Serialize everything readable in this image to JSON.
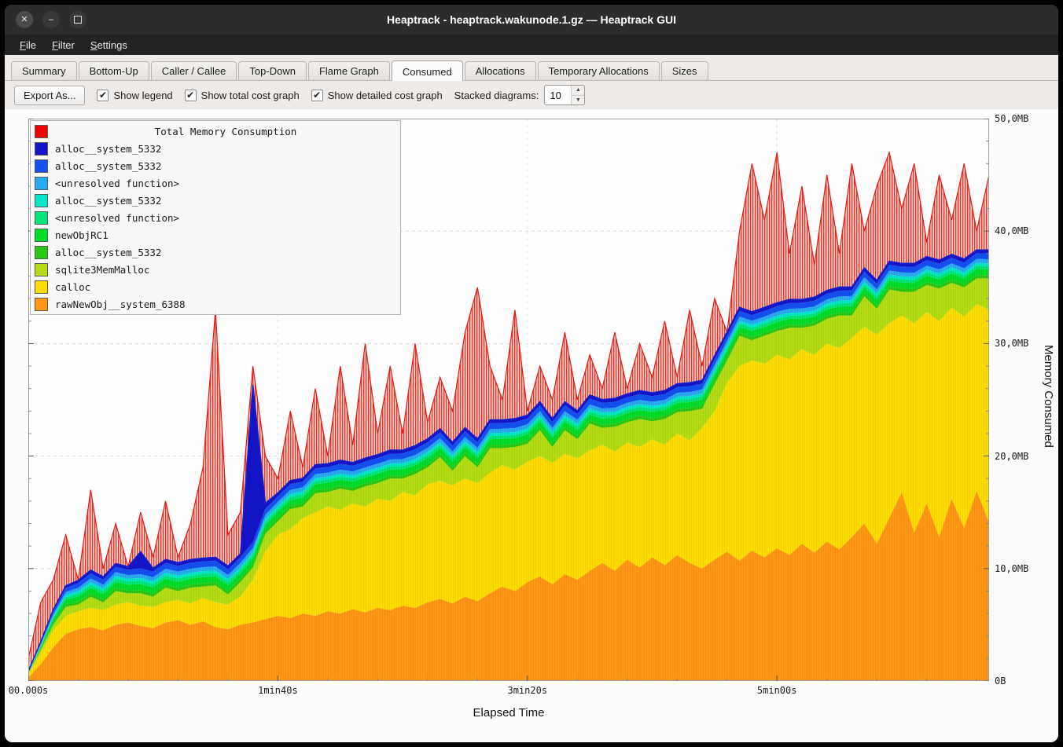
{
  "window": {
    "title": "Heaptrack - heaptrack.wakunode.1.gz — Heaptrack GUI"
  },
  "icons": {
    "check": "✔",
    "close": "✕",
    "minimize": "–",
    "spin_up": "▲",
    "spin_down": "▼"
  },
  "menubar": {
    "items": [
      "File",
      "Filter",
      "Settings"
    ]
  },
  "tabs": {
    "items": [
      "Summary",
      "Bottom-Up",
      "Caller / Callee",
      "Top-Down",
      "Flame Graph",
      "Consumed",
      "Allocations",
      "Temporary Allocations",
      "Sizes"
    ],
    "active": "Consumed"
  },
  "toolbar": {
    "export_button": "Export As...",
    "checkboxes": [
      {
        "label": "Show legend",
        "checked": true
      },
      {
        "label": "Show total cost graph",
        "checked": true
      },
      {
        "label": "Show detailed cost graph",
        "checked": true
      }
    ],
    "stacked_label": "Stacked diagrams:",
    "stacked_value": "10"
  },
  "chart_data": {
    "type": "area",
    "title": "Total Memory Consumption",
    "xlabel": "Elapsed Time",
    "ylabel": "Memory Consumed",
    "xlim": [
      0,
      385
    ],
    "ylim": [
      0,
      50
    ],
    "x_ticks": [
      {
        "value": 0,
        "label": "00.000s"
      },
      {
        "value": 100,
        "label": "1min40s"
      },
      {
        "value": 200,
        "label": "3min20s"
      },
      {
        "value": 300,
        "label": "5min00s"
      }
    ],
    "y_ticks": [
      {
        "value": 0,
        "label": "0B"
      },
      {
        "value": 10,
        "label": "10,0MB"
      },
      {
        "value": 20,
        "label": "20,0MB"
      },
      {
        "value": 30,
        "label": "30,0MB"
      },
      {
        "value": 40,
        "label": "40,0MB"
      },
      {
        "value": 50,
        "label": "50,0MB"
      }
    ],
    "x_minor_step": 20,
    "y_minor_step": 2,
    "x_start": 0,
    "x_step": 5,
    "unit": "MB",
    "series": [
      {
        "name": "rawNewObj__system_6388",
        "color": "#ff9614",
        "values": [
          0.3,
          1.5,
          3.0,
          4.2,
          4.6,
          4.8,
          4.5,
          5.0,
          5.2,
          4.9,
          4.7,
          5.2,
          5.4,
          5.0,
          5.3,
          4.8,
          4.6,
          5.0,
          5.2,
          5.5,
          5.8,
          5.6,
          6.0,
          5.8,
          6.2,
          6.0,
          6.4,
          6.1,
          6.5,
          6.3,
          6.7,
          6.5,
          7.0,
          7.3,
          6.9,
          7.5,
          7.1,
          7.8,
          8.4,
          8.0,
          8.8,
          9.3,
          8.6,
          9.5,
          9.0,
          9.8,
          10.5,
          9.8,
          10.8,
          10.1,
          11.0,
          10.3,
          11.2,
          10.5,
          10.0,
          10.8,
          11.5,
          10.7,
          11.6,
          11.0,
          11.8,
          11.2,
          12.2,
          11.4,
          12.4,
          11.7,
          12.8,
          14.0,
          12.2,
          14.5,
          16.8,
          13.2,
          15.8,
          12.8,
          16.2,
          13.6,
          16.9,
          14.1,
          13.0,
          15.5
        ]
      },
      {
        "name": "calloc",
        "color": "#ffdc00",
        "values": [
          0.3,
          1.0,
          1.5,
          1.6,
          1.6,
          1.7,
          1.8,
          1.8,
          1.8,
          1.8,
          1.9,
          1.8,
          1.8,
          1.9,
          2.1,
          2.2,
          2.2,
          2.5,
          3.8,
          6.0,
          7.2,
          7.9,
          8.5,
          9.2,
          9.3,
          9.2,
          9.4,
          9.4,
          9.7,
          9.7,
          10.1,
          10.0,
          10.5,
          10.5,
          10.5,
          10.5,
          10.5,
          10.7,
          10.8,
          10.8,
          10.7,
          10.7,
          10.8,
          10.7,
          10.8,
          10.7,
          10.5,
          10.6,
          10.4,
          10.7,
          10.5,
          10.7,
          10.8,
          10.9,
          12.5,
          13.2,
          15.0,
          17.3,
          16.9,
          17.2,
          17.2,
          17.4,
          17.3,
          17.6,
          17.6,
          17.9,
          17.7,
          17.5,
          18.6,
          17.3,
          15.7,
          18.6,
          17.0,
          19.2,
          17.0,
          18.8,
          16.6,
          18.9,
          19.6,
          17.9
        ]
      },
      {
        "name": "sqlite3MemMalloc",
        "color": "#b4dc14",
        "values": [
          0.1,
          0.3,
          0.5,
          0.8,
          0.6,
          1.0,
          0.7,
          1.2,
          0.8,
          1.1,
          0.9,
          1.3,
          0.8,
          1.4,
          1.0,
          1.5,
          0.9,
          1.3,
          1.1,
          1.6,
          1.2,
          1.8,
          1.0,
          1.7,
          1.3,
          1.9,
          1.1,
          1.8,
          1.4,
          2.0,
          1.2,
          1.9,
          1.5,
          2.1,
          1.3,
          2.0,
          1.4,
          2.2,
          1.5,
          2.0,
          1.6,
          2.3,
          1.4,
          2.1,
          1.7,
          2.4,
          1.5,
          2.2,
          1.8,
          2.5,
          1.6,
          2.3,
          1.9,
          2.6,
          1.7,
          2.4,
          2.0,
          2.7,
          1.8,
          2.5,
          2.1,
          2.8,
          1.9,
          2.6,
          2.2,
          2.9,
          2.0,
          2.7,
          2.3,
          3.0,
          2.1,
          2.8,
          2.4,
          2.9,
          2.2,
          2.6,
          2.3,
          2.8,
          2.4,
          2.7
        ]
      },
      {
        "name": "alloc__system_5332",
        "color": "#28c814",
        "values": [
          0.02,
          0.1,
          0.18,
          0.24,
          0.26,
          0.27,
          0.26,
          0.28,
          0.27,
          0.28,
          0.28,
          0.29,
          0.28,
          0.29,
          0.28,
          0.29,
          0.28,
          0.29,
          0.28,
          0.29,
          0.28,
          0.29,
          0.28,
          0.29,
          0.28,
          0.29,
          0.28,
          0.29,
          0.28,
          0.29,
          0.28,
          0.29,
          0.28,
          0.29,
          0.28,
          0.29,
          0.28,
          0.29,
          0.28,
          0.29,
          0.28,
          0.29,
          0.28,
          0.29,
          0.28,
          0.29,
          0.28,
          0.29,
          0.28,
          0.29,
          0.28,
          0.29,
          0.28,
          0.29,
          0.28,
          0.29,
          0.28,
          0.29,
          0.28,
          0.29,
          0.28,
          0.29,
          0.28,
          0.29,
          0.28,
          0.29,
          0.28,
          0.29,
          0.28,
          0.29,
          0.28,
          0.29,
          0.28,
          0.29,
          0.28,
          0.29,
          0.28,
          0.29,
          0.28,
          0.29
        ]
      },
      {
        "name": "newObjRC1",
        "color": "#00dc28",
        "values": [
          0.03,
          0.15,
          0.3,
          0.4,
          0.45,
          0.5,
          0.48,
          0.52,
          0.5,
          0.53,
          0.55,
          0.5,
          0.55,
          0.5,
          0.55,
          0.5,
          0.55,
          0.5,
          0.55,
          0.5,
          0.55,
          0.5,
          0.55,
          0.5,
          0.55,
          0.5,
          0.55,
          0.5,
          0.55,
          0.5,
          0.55,
          0.5,
          0.55,
          0.5,
          0.55,
          0.5,
          0.55,
          0.5,
          0.55,
          0.5,
          0.55,
          0.5,
          0.55,
          0.5,
          0.55,
          0.5,
          0.55,
          0.5,
          0.55,
          0.5,
          0.55,
          0.5,
          0.55,
          0.5,
          0.55,
          0.5,
          0.55,
          0.5,
          0.55,
          0.5,
          0.55,
          0.5,
          0.55,
          0.5,
          0.55,
          0.5,
          0.55,
          0.5,
          0.55,
          0.5,
          0.55,
          0.5,
          0.55,
          0.5,
          0.55,
          0.5,
          0.55,
          0.5,
          0.55,
          0.5
        ]
      },
      {
        "name": "<unresolved function>",
        "color": "#00e678",
        "values": [
          0.02,
          0.08,
          0.15,
          0.22,
          0.26,
          0.28,
          0.27,
          0.29,
          0.28,
          0.3,
          0.3,
          0.28,
          0.3,
          0.28,
          0.3,
          0.28,
          0.3,
          0.28,
          0.3,
          0.28,
          0.3,
          0.28,
          0.3,
          0.28,
          0.3,
          0.28,
          0.3,
          0.28,
          0.3,
          0.28,
          0.3,
          0.28,
          0.3,
          0.28,
          0.3,
          0.28,
          0.3,
          0.28,
          0.3,
          0.28,
          0.3,
          0.28,
          0.3,
          0.28,
          0.3,
          0.28,
          0.3,
          0.28,
          0.3,
          0.28,
          0.3,
          0.28,
          0.3,
          0.28,
          0.3,
          0.28,
          0.3,
          0.28,
          0.3,
          0.28,
          0.3,
          0.28,
          0.3,
          0.28,
          0.3,
          0.28,
          0.3,
          0.28,
          0.3,
          0.28,
          0.3,
          0.28,
          0.3,
          0.28,
          0.3,
          0.28,
          0.3,
          0.28,
          0.3,
          0.28
        ]
      },
      {
        "name": "alloc__system_5332",
        "color": "#00e6c8",
        "values": [
          0.02,
          0.08,
          0.14,
          0.2,
          0.22,
          0.24,
          0.23,
          0.25,
          0.24,
          0.25,
          0.25,
          0.26,
          0.25,
          0.26,
          0.25,
          0.26,
          0.25,
          0.26,
          0.25,
          0.26,
          0.25,
          0.26,
          0.25,
          0.26,
          0.25,
          0.26,
          0.25,
          0.26,
          0.25,
          0.26,
          0.25,
          0.26,
          0.25,
          0.26,
          0.25,
          0.26,
          0.25,
          0.26,
          0.25,
          0.26,
          0.25,
          0.26,
          0.25,
          0.26,
          0.25,
          0.26,
          0.25,
          0.26,
          0.25,
          0.26,
          0.25,
          0.26,
          0.25,
          0.26,
          0.25,
          0.26,
          0.25,
          0.26,
          0.25,
          0.26,
          0.25,
          0.26,
          0.25,
          0.26,
          0.25,
          0.26,
          0.25,
          0.26,
          0.25,
          0.26,
          0.25,
          0.26,
          0.25,
          0.26,
          0.25,
          0.26,
          0.25,
          0.26,
          0.25,
          0.26
        ]
      },
      {
        "name": "<unresolved function>",
        "color": "#28aaf0",
        "values": [
          0.02,
          0.1,
          0.18,
          0.26,
          0.3,
          0.33,
          0.32,
          0.34,
          0.33,
          0.35,
          0.35,
          0.36,
          0.35,
          0.36,
          0.35,
          0.36,
          0.35,
          0.36,
          0.35,
          0.36,
          0.35,
          0.36,
          0.35,
          0.36,
          0.35,
          0.36,
          0.35,
          0.36,
          0.35,
          0.36,
          0.35,
          0.36,
          0.35,
          0.36,
          0.35,
          0.36,
          0.35,
          0.36,
          0.35,
          0.36,
          0.35,
          0.36,
          0.35,
          0.36,
          0.35,
          0.36,
          0.35,
          0.36,
          0.35,
          0.36,
          0.35,
          0.36,
          0.35,
          0.36,
          0.35,
          0.36,
          0.35,
          0.36,
          0.35,
          0.36,
          0.35,
          0.36,
          0.35,
          0.36,
          0.35,
          0.36,
          0.35,
          0.36,
          0.35,
          0.36,
          0.35,
          0.36,
          0.35,
          0.36,
          0.35,
          0.36,
          0.35,
          0.36,
          0.35,
          0.36
        ]
      },
      {
        "name": "alloc__system_5332",
        "color": "#1450f0",
        "values": [
          0.03,
          0.12,
          0.25,
          0.35,
          0.42,
          0.46,
          0.45,
          0.48,
          0.47,
          0.5,
          0.5,
          0.52,
          0.5,
          0.52,
          0.5,
          0.52,
          0.5,
          0.52,
          0.5,
          0.52,
          0.5,
          0.52,
          0.5,
          0.52,
          0.5,
          0.52,
          0.5,
          0.52,
          0.5,
          0.52,
          0.5,
          0.52,
          0.5,
          0.52,
          0.5,
          0.52,
          0.5,
          0.52,
          0.5,
          0.52,
          0.5,
          0.52,
          0.5,
          0.52,
          0.5,
          0.52,
          0.5,
          0.52,
          0.5,
          0.52,
          0.5,
          0.52,
          0.5,
          0.52,
          0.5,
          0.52,
          0.5,
          0.52,
          0.5,
          0.52,
          0.5,
          0.52,
          0.5,
          0.52,
          0.5,
          0.52,
          0.5,
          0.52,
          0.5,
          0.52,
          0.5,
          0.52,
          0.5,
          0.52,
          0.5,
          0.52,
          0.5,
          0.52,
          0.5,
          0.52
        ]
      },
      {
        "name": "alloc__system_5332",
        "color": "#1414c8",
        "values": [
          0.02,
          0.08,
          0.15,
          0.2,
          0.25,
          0.28,
          0.27,
          0.29,
          0.28,
          1.5,
          0.3,
          0.3,
          0.3,
          0.3,
          0.3,
          0.3,
          0.3,
          0.3,
          14,
          0.5,
          0.3,
          0.32,
          0.3,
          0.32,
          0.3,
          0.32,
          0.3,
          0.32,
          0.3,
          0.32,
          0.3,
          0.32,
          0.3,
          0.32,
          0.3,
          0.32,
          0.3,
          0.32,
          0.3,
          0.32,
          0.3,
          0.32,
          0.3,
          0.32,
          0.3,
          0.32,
          0.3,
          0.32,
          0.3,
          0.32,
          0.3,
          0.32,
          0.3,
          0.32,
          0.3,
          0.32,
          0.3,
          0.32,
          0.3,
          0.32,
          0.3,
          0.32,
          0.3,
          0.32,
          0.3,
          0.32,
          0.3,
          0.32,
          0.3,
          0.32,
          0.3,
          0.32,
          0.3,
          0.32,
          0.3,
          0.32,
          0.3,
          0.32,
          0.3,
          0.32
        ]
      }
    ],
    "total": {
      "name": "Total Memory Consumption",
      "color": "#f00000",
      "values": [
        2,
        7,
        9,
        13,
        9,
        17,
        10,
        14,
        10,
        15,
        11,
        16,
        11,
        14,
        19,
        33,
        13,
        15,
        28,
        20,
        18,
        24,
        19,
        26,
        20,
        28,
        21,
        30,
        22,
        28,
        22,
        30,
        23,
        27,
        24,
        31,
        35,
        28,
        25,
        33,
        24,
        28,
        25,
        31,
        25,
        29,
        26,
        31,
        26,
        30,
        27,
        32,
        27,
        33,
        28,
        34,
        31,
        40,
        46,
        41,
        47,
        38,
        44,
        37,
        45,
        38,
        46,
        40,
        44,
        47,
        42,
        46,
        39,
        45,
        41,
        46,
        40,
        45,
        42,
        46
      ]
    }
  }
}
